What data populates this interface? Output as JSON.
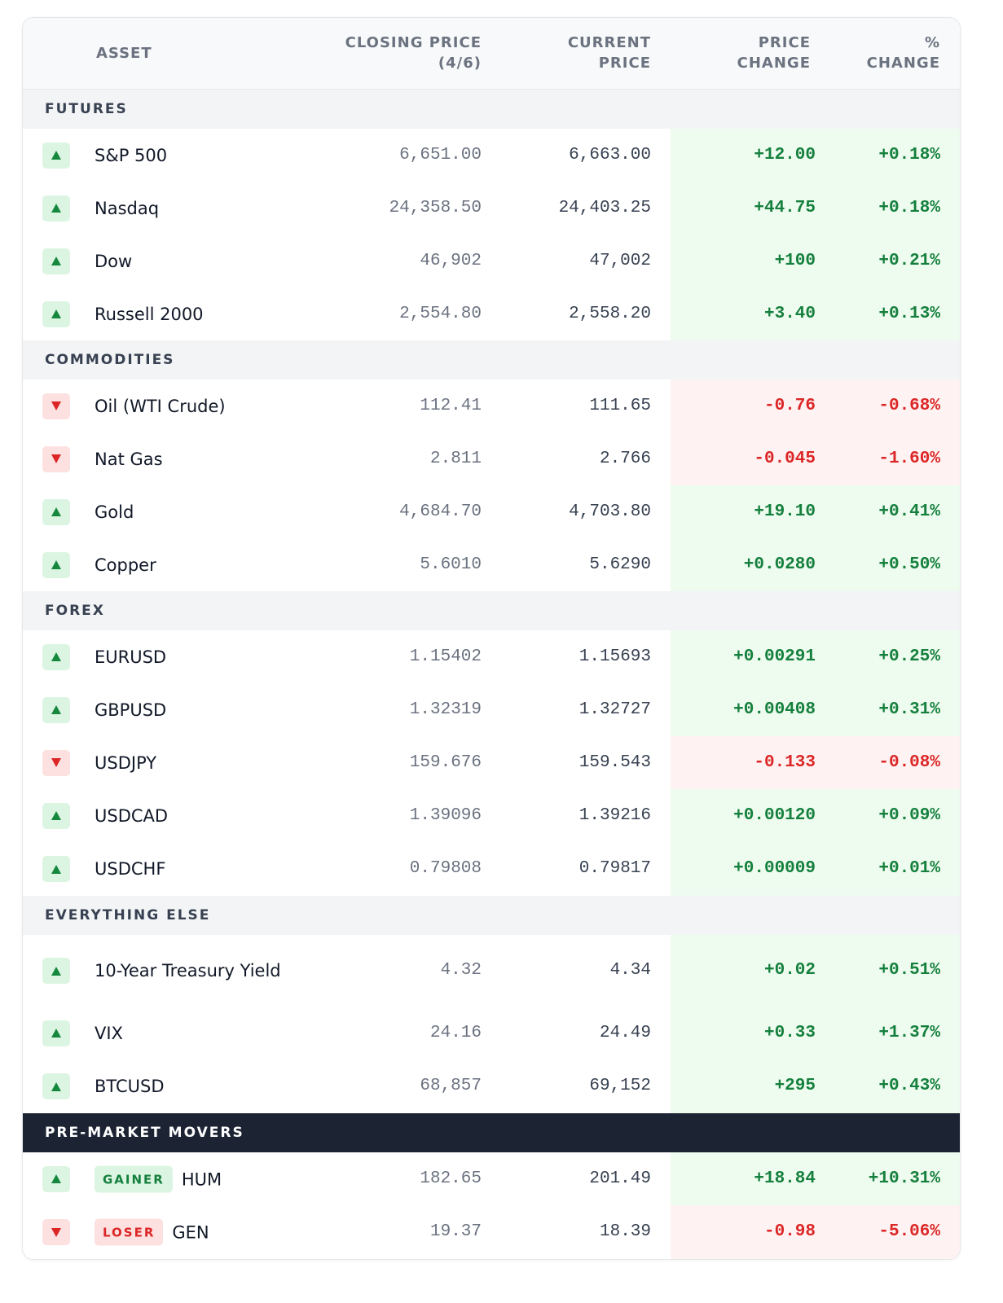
{
  "header": {
    "asset": "ASSET",
    "closing_line1": "CLOSING PRICE",
    "closing_line2": "(4/6)",
    "current_line1": "CURRENT",
    "current_line2": "PRICE",
    "price_change_line1": "PRICE",
    "price_change_line2": "CHANGE",
    "pct_change_line1": "%",
    "pct_change_line2": "CHANGE"
  },
  "sections": [
    {
      "title": "FUTURES",
      "rows": [
        {
          "direction": "up",
          "asset": "S&P 500",
          "closing": "6,651.00",
          "current": "6,663.00",
          "change": "+12.00",
          "pct": "+0.18%"
        },
        {
          "direction": "up",
          "asset": "Nasdaq",
          "closing": "24,358.50",
          "current": "24,403.25",
          "change": "+44.75",
          "pct": "+0.18%"
        },
        {
          "direction": "up",
          "asset": "Dow",
          "closing": "46,902",
          "current": "47,002",
          "change": "+100",
          "pct": "+0.21%"
        },
        {
          "direction": "up",
          "asset": "Russell 2000",
          "closing": "2,554.80",
          "current": "2,558.20",
          "change": "+3.40",
          "pct": "+0.13%"
        }
      ]
    },
    {
      "title": "COMMODITIES",
      "rows": [
        {
          "direction": "down",
          "asset": "Oil (WTI Crude)",
          "closing": "112.41",
          "current": "111.65",
          "change": "-0.76",
          "pct": "-0.68%"
        },
        {
          "direction": "down",
          "asset": "Nat Gas",
          "closing": "2.811",
          "current": "2.766",
          "change": "-0.045",
          "pct": "-1.60%"
        },
        {
          "direction": "up",
          "asset": "Gold",
          "closing": "4,684.70",
          "current": "4,703.80",
          "change": "+19.10",
          "pct": "+0.41%"
        },
        {
          "direction": "up",
          "asset": "Copper",
          "closing": "5.6010",
          "current": "5.6290",
          "change": "+0.0280",
          "pct": "+0.50%"
        }
      ]
    },
    {
      "title": "FOREX",
      "rows": [
        {
          "direction": "up",
          "asset": "EURUSD",
          "closing": "1.15402",
          "current": "1.15693",
          "change": "+0.00291",
          "pct": "+0.25%"
        },
        {
          "direction": "up",
          "asset": "GBPUSD",
          "closing": "1.32319",
          "current": "1.32727",
          "change": "+0.00408",
          "pct": "+0.31%"
        },
        {
          "direction": "down",
          "asset": "USDJPY",
          "closing": "159.676",
          "current": "159.543",
          "change": "-0.133",
          "pct": "-0.08%"
        },
        {
          "direction": "up",
          "asset": "USDCAD",
          "closing": "1.39096",
          "current": "1.39216",
          "change": "+0.00120",
          "pct": "+0.09%"
        },
        {
          "direction": "up",
          "asset": "USDCHF",
          "closing": "0.79808",
          "current": "0.79817",
          "change": "+0.00009",
          "pct": "+0.01%"
        }
      ]
    },
    {
      "title": "EVERYTHING ELSE",
      "rows": [
        {
          "direction": "up",
          "asset": "10-Year Treasury Yield",
          "closing": "4.32",
          "current": "4.34",
          "change": "+0.02",
          "pct": "+0.51%"
        },
        {
          "direction": "up",
          "asset": "VIX",
          "closing": "24.16",
          "current": "24.49",
          "change": "+0.33",
          "pct": "+1.37%"
        },
        {
          "direction": "up",
          "asset": "BTCUSD",
          "closing": "68,857",
          "current": "69,152",
          "change": "+295",
          "pct": "+0.43%"
        }
      ]
    }
  ],
  "movers": {
    "title": "PRE-MARKET MOVERS",
    "rows": [
      {
        "direction": "up",
        "badge": "GAINER",
        "asset": "HUM",
        "closing": "182.65",
        "current": "201.49",
        "change": "+18.84",
        "pct": "+10.31%"
      },
      {
        "direction": "down",
        "badge": "LOSER",
        "asset": "GEN",
        "closing": "19.37",
        "current": "18.39",
        "change": "-0.98",
        "pct": "-5.06%"
      }
    ]
  },
  "colors": {
    "up_text": "#15803d",
    "down_text": "#dc2626",
    "up_bg": "#eefbef",
    "down_bg": "#fef2f2",
    "movers_header_bg": "#1c2434"
  },
  "icons": {
    "up": "triangle-up-icon",
    "down": "triangle-down-icon"
  }
}
